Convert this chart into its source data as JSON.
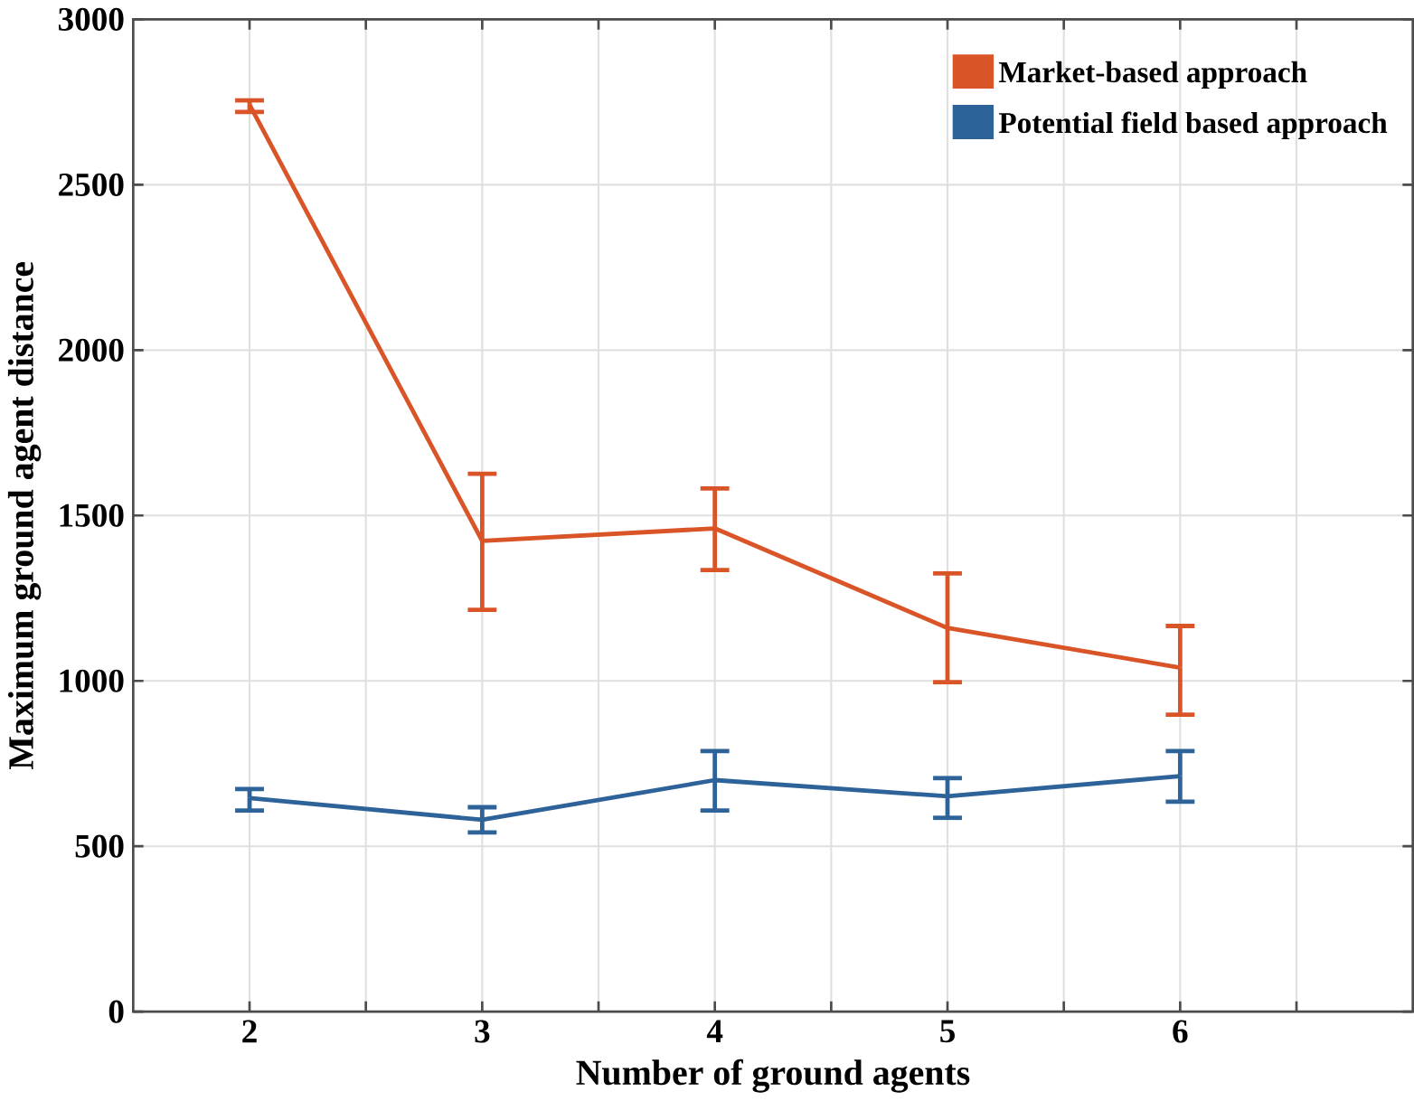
{
  "chart_data": {
    "type": "line",
    "xlabel": "Number of ground agents",
    "ylabel": "Maximum ground agent distance",
    "x": [
      2,
      3,
      4,
      5,
      6
    ],
    "series": [
      {
        "name": "Market-based approach",
        "color": "#d95427",
        "values": [
          2742,
          1423,
          1461,
          1160,
          1040
        ],
        "errors": [
          [
            2720,
            2755
          ],
          [
            1215,
            1626
          ],
          [
            1335,
            1582
          ],
          [
            996,
            1325
          ],
          [
            898,
            1166
          ]
        ]
      },
      {
        "name": "Potential field  based approach",
        "color": "#2e6399",
        "values": [
          646,
          580,
          700,
          651,
          712
        ],
        "errors": [
          [
            608,
            673
          ],
          [
            542,
            618
          ],
          [
            608,
            788
          ],
          [
            586,
            706
          ],
          [
            635,
            788
          ]
        ]
      }
    ],
    "xlim": [
      1.5,
      7
    ],
    "ylim": [
      0,
      3000
    ],
    "xticks": [
      2,
      {
        "value": 2.5,
        "label": null
      },
      3,
      {
        "value": 3.5,
        "label": null
      },
      4,
      {
        "value": 4.5,
        "label": null
      },
      5,
      {
        "value": 5.5,
        "label": null
      },
      6,
      {
        "value": 6.5,
        "label": null
      }
    ],
    "yticks": [
      0,
      500,
      1000,
      1500,
      2000,
      2500,
      3000
    ],
    "grid": true,
    "legend": "top right",
    "marker": "none",
    "line_style": "solid"
  }
}
